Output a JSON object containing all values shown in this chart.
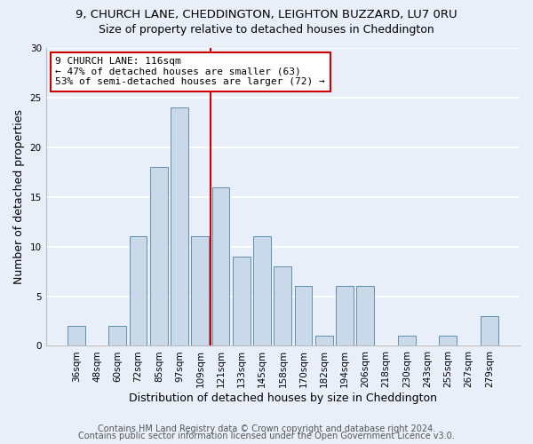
{
  "title_line1": "9, CHURCH LANE, CHEDDINGTON, LEIGHTON BUZZARD, LU7 0RU",
  "title_line2": "Size of property relative to detached houses in Cheddington",
  "xlabel": "Distribution of detached houses by size in Cheddington",
  "ylabel": "Number of detached properties",
  "categories": [
    "36sqm",
    "48sqm",
    "60sqm",
    "72sqm",
    "85sqm",
    "97sqm",
    "109sqm",
    "121sqm",
    "133sqm",
    "145sqm",
    "158sqm",
    "170sqm",
    "182sqm",
    "194sqm",
    "206sqm",
    "218sqm",
    "230sqm",
    "243sqm",
    "255sqm",
    "267sqm",
    "279sqm"
  ],
  "values": [
    2,
    0,
    2,
    11,
    18,
    24,
    11,
    16,
    9,
    11,
    8,
    6,
    1,
    6,
    6,
    0,
    1,
    0,
    1,
    0,
    3
  ],
  "bar_color": "#c9d9ea",
  "bar_edge_color": "#6090b0",
  "vline_x_index": 6.5,
  "vline_color": "#cc0000",
  "annotation_line1": "9 CHURCH LANE: 116sqm",
  "annotation_line2": "← 47% of detached houses are smaller (63)",
  "annotation_line3": "53% of semi-detached houses are larger (72) →",
  "annotation_box_color": "#ffffff",
  "annotation_box_edge": "#cc0000",
  "ylim": [
    0,
    30
  ],
  "yticks": [
    0,
    5,
    10,
    15,
    20,
    25,
    30
  ],
  "background_color": "#e8eff8",
  "grid_color": "#ffffff",
  "footer_line1": "Contains HM Land Registry data © Crown copyright and database right 2024.",
  "footer_line2": "Contains public sector information licensed under the Open Government Licence v3.0.",
  "title_fontsize": 9.5,
  "subtitle_fontsize": 9,
  "ylabel_fontsize": 9,
  "xlabel_fontsize": 9,
  "tick_fontsize": 7.5,
  "annotation_fontsize": 8,
  "footer_fontsize": 7
}
